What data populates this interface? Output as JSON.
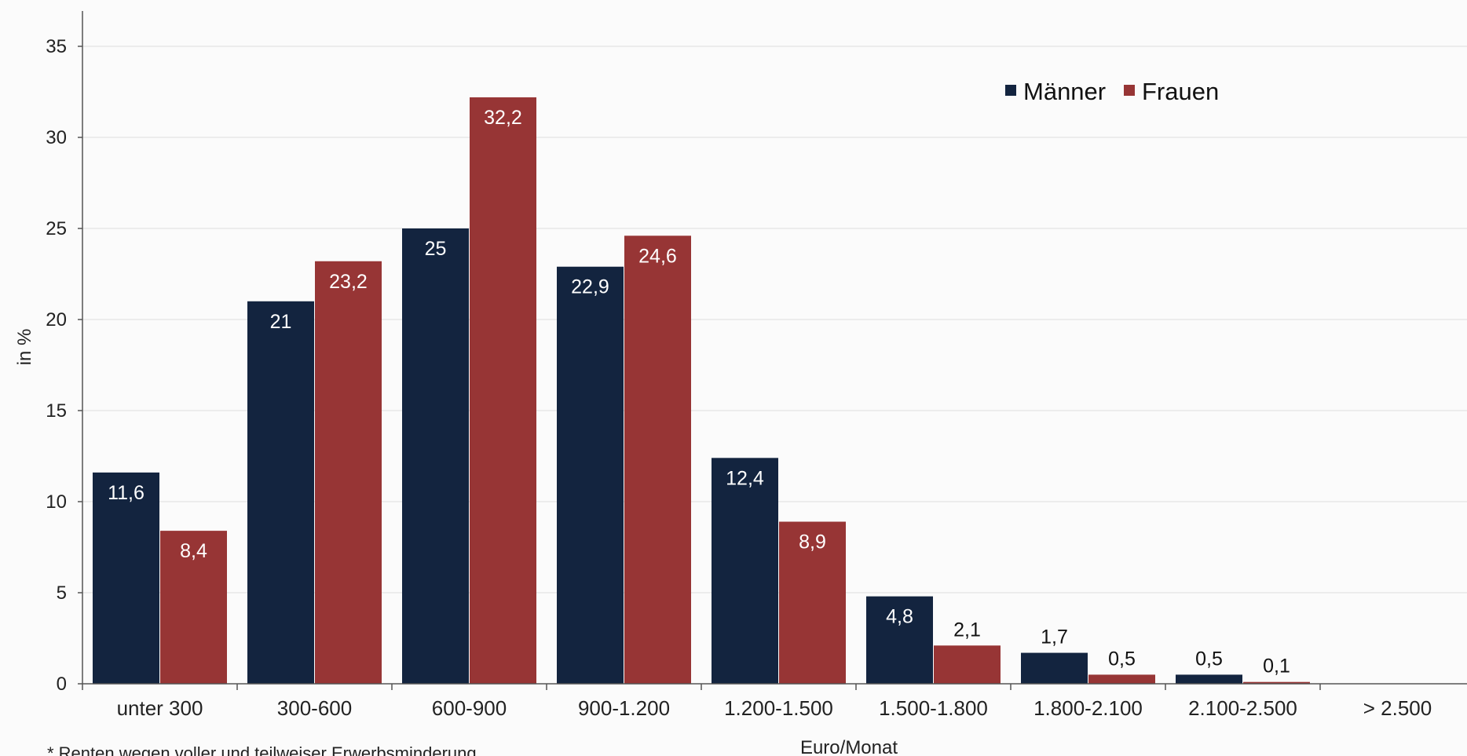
{
  "chart_data": {
    "type": "bar",
    "title": "",
    "xlabel": "Euro/Monat",
    "ylabel": "in %",
    "ylim": [
      0,
      37
    ],
    "yticks": [
      0,
      5,
      10,
      15,
      20,
      25,
      30,
      35
    ],
    "grid": true,
    "legend_position": "top-right",
    "categories": [
      "unter 300",
      "300-600",
      "600-900",
      "900-1.200",
      "1.200-1.500",
      "1.500-1.800",
      "1.800-2.100",
      "2.100-2.500",
      "> 2.500"
    ],
    "series": [
      {
        "name": "Männer",
        "color": "#13243f",
        "values": [
          11.6,
          21,
          25,
          22.9,
          12.4,
          4.8,
          1.7,
          0.5,
          null
        ],
        "labels": [
          "11,6",
          "21",
          "25",
          "22,9",
          "12,4",
          "4,8",
          "1,7",
          "0,5",
          ""
        ]
      },
      {
        "name": "Frauen",
        "color": "#973535",
        "values": [
          8.4,
          23.2,
          32.2,
          24.6,
          8.9,
          2.1,
          0.5,
          0.1,
          null
        ],
        "labels": [
          "8,4",
          "23,2",
          "32,2",
          "24,6",
          "8,9",
          "2,1",
          "0,5",
          "0,1",
          ""
        ]
      }
    ],
    "footnote": "* Renten wegen voller und teilweiser Erwerbsminderung"
  }
}
